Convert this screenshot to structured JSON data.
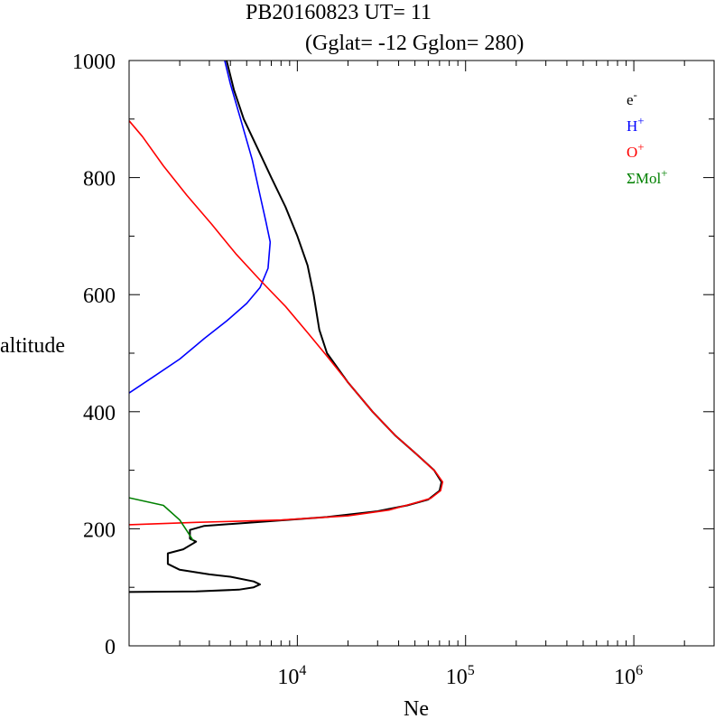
{
  "title_line1": "PB20160823   UT=  11",
  "title_line2": "(Gglat= -12   Gglon=  280)",
  "chart_data": {
    "type": "line",
    "xlabel": "Ne",
    "ylabel": "altitude",
    "x_scale": "log",
    "xlim": [
      1000,
      3000000
    ],
    "ylim": [
      0,
      1000
    ],
    "y_ticks": [
      "0",
      "200",
      "400",
      "600",
      "800",
      "1000"
    ],
    "x_ticks": [
      {
        "value": 10000,
        "base": "10",
        "exp": "4"
      },
      {
        "value": 100000,
        "base": "10",
        "exp": "5"
      },
      {
        "value": 1000000,
        "base": "10",
        "exp": "6"
      }
    ],
    "legend_position": "top-right",
    "series": [
      {
        "name": "e",
        "sup": "-",
        "color": "#000000",
        "points": [
          [
            1000,
            92
          ],
          [
            2500,
            93
          ],
          [
            4500,
            96
          ],
          [
            5500,
            100
          ],
          [
            6000,
            105
          ],
          [
            5500,
            110
          ],
          [
            4000,
            118
          ],
          [
            3000,
            122
          ],
          [
            2000,
            130
          ],
          [
            1700,
            140
          ],
          [
            1700,
            158
          ],
          [
            2100,
            165
          ],
          [
            2500,
            178
          ],
          [
            2300,
            183
          ],
          [
            2300,
            198
          ],
          [
            2800,
            205
          ],
          [
            5000,
            210
          ],
          [
            15000,
            220
          ],
          [
            30000,
            230
          ],
          [
            45000,
            240
          ],
          [
            60000,
            250
          ],
          [
            70000,
            265
          ],
          [
            72000,
            280
          ],
          [
            65000,
            300
          ],
          [
            50000,
            330
          ],
          [
            38000,
            360
          ],
          [
            28000,
            400
          ],
          [
            20000,
            450
          ],
          [
            15000,
            500
          ],
          [
            13500,
            540
          ],
          [
            12500,
            600
          ],
          [
            11500,
            650
          ],
          [
            10000,
            700
          ],
          [
            8500,
            750
          ],
          [
            7000,
            800
          ],
          [
            5800,
            850
          ],
          [
            4800,
            900
          ],
          [
            4200,
            950
          ],
          [
            3800,
            1000
          ]
        ]
      },
      {
        "name": "H",
        "sup": "+",
        "color": "#0000ff",
        "points": [
          [
            1000,
            432
          ],
          [
            1400,
            460
          ],
          [
            2000,
            490
          ],
          [
            2800,
            525
          ],
          [
            3800,
            555
          ],
          [
            5000,
            585
          ],
          [
            6000,
            612
          ],
          [
            6700,
            645
          ],
          [
            6900,
            690
          ],
          [
            6500,
            725
          ],
          [
            6000,
            770
          ],
          [
            5400,
            830
          ],
          [
            4600,
            900
          ],
          [
            4000,
            960
          ],
          [
            3700,
            1000
          ]
        ]
      },
      {
        "name": "O",
        "sup": "+",
        "color": "#ff0000",
        "points": [
          [
            1000,
            207
          ],
          [
            2500,
            211
          ],
          [
            8000,
            215
          ],
          [
            20000,
            222
          ],
          [
            35000,
            232
          ],
          [
            50000,
            244
          ],
          [
            62000,
            252
          ],
          [
            71000,
            265
          ],
          [
            73000,
            280
          ],
          [
            66000,
            298
          ],
          [
            50000,
            330
          ],
          [
            38000,
            360
          ],
          [
            28000,
            400
          ],
          [
            20000,
            450
          ],
          [
            15000,
            495
          ],
          [
            11500,
            535
          ],
          [
            8500,
            580
          ],
          [
            6000,
            625
          ],
          [
            4300,
            670
          ],
          [
            3100,
            720
          ],
          [
            2200,
            770
          ],
          [
            1600,
            820
          ],
          [
            1200,
            870
          ],
          [
            1000,
            897
          ]
        ]
      },
      {
        "name": "ΣMol",
        "sup": "+",
        "color": "#008000",
        "points": [
          [
            1000,
            253
          ],
          [
            1600,
            240
          ],
          [
            2000,
            215
          ],
          [
            2200,
            197
          ],
          [
            2400,
            180
          ]
        ]
      }
    ]
  }
}
